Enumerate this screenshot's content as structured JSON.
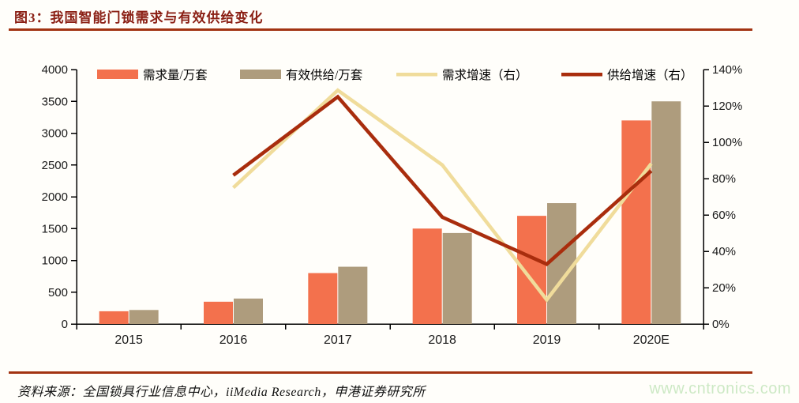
{
  "title": "图3：我国智能门锁需求与有效供给变化",
  "source": "资料来源：全国锁具行业信息中心，iiMedia Research，申港证券研究所",
  "watermark": "www.cntronics.com",
  "colors": {
    "title": "#8a1f14",
    "rule": "#a23312",
    "demand_bar": "#f3714d",
    "supply_bar": "#ae9c7d",
    "demand_line": "#f0dc9b",
    "supply_line": "#a92d0d",
    "axis": "#000000",
    "label": "#1a1a1a",
    "watermark": "#cde9c5"
  },
  "chart_data": {
    "type": "bar",
    "subtype": "bar-line-combo",
    "title": "图3：我国智能门锁需求与有效供给变化",
    "categories": [
      "2015",
      "2016",
      "2017",
      "2018",
      "2019",
      "2020E"
    ],
    "bar_series": [
      {
        "name": "需求量/万套",
        "color_key": "demand_bar",
        "axis": "left",
        "values": [
          200,
          350,
          800,
          1500,
          1700,
          3200
        ]
      },
      {
        "name": "有效供给/万套",
        "color_key": "supply_bar",
        "axis": "left",
        "values": [
          220,
          400,
          900,
          1430,
          1900,
          3500
        ]
      }
    ],
    "line_series": [
      {
        "name": "需求增速（右）",
        "color_key": "demand_line",
        "axis": "right",
        "values": [
          null,
          75,
          128.6,
          87.5,
          13.3,
          88.2
        ]
      },
      {
        "name": "供给增速（右）",
        "color_key": "supply_line",
        "axis": "right",
        "values": [
          null,
          81.8,
          125,
          58.8,
          32.9,
          84.2
        ]
      }
    ],
    "left_axis": {
      "min": 0,
      "max": 4000,
      "step": 500,
      "ticks": [
        "0",
        "500",
        "1000",
        "1500",
        "2000",
        "2500",
        "3000",
        "3500",
        "4000"
      ]
    },
    "right_axis": {
      "min": 0,
      "max": 140,
      "step": 20,
      "ticks": [
        "0%",
        "20%",
        "40%",
        "60%",
        "80%",
        "100%",
        "120%",
        "140%"
      ]
    },
    "legend_position": "top",
    "grid": false
  }
}
